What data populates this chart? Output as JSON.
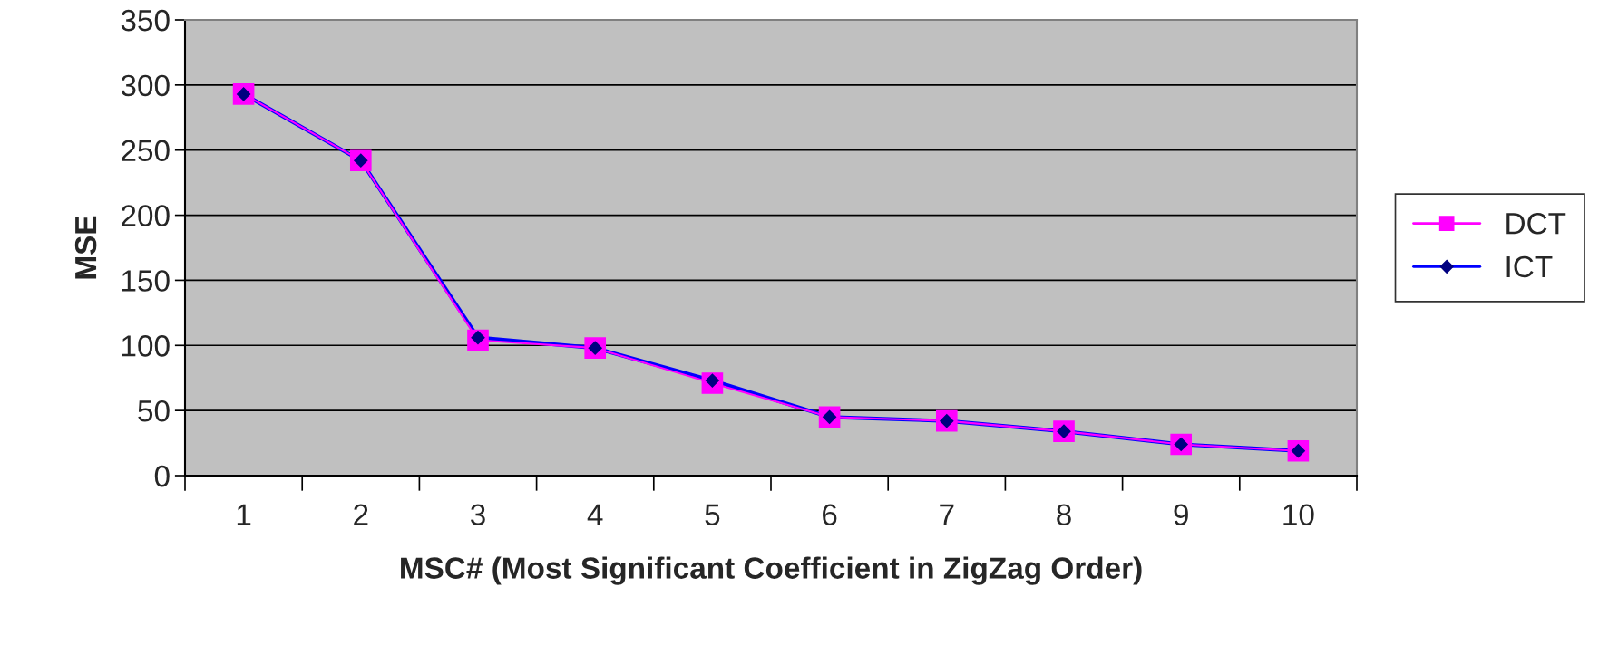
{
  "chart_data": {
    "type": "line",
    "xlabel": "MSC# (Most Significant Coefficient in ZigZag Order)",
    "ylabel": "MSE",
    "categories": [
      "1",
      "2",
      "3",
      "4",
      "5",
      "6",
      "7",
      "8",
      "9",
      "10"
    ],
    "series": [
      {
        "name": "DCT",
        "color": "#ff00ff",
        "marker": "square",
        "values": [
          293,
          242,
          104,
          98,
          71,
          45,
          42,
          34,
          24,
          19
        ]
      },
      {
        "name": "ICT",
        "color": "#0000ff",
        "marker": "diamond",
        "values": [
          293,
          242,
          106,
          98,
          73,
          45,
          42,
          34,
          24,
          19
        ]
      }
    ],
    "ylim": [
      0,
      350
    ],
    "yticks": [
      0,
      50,
      100,
      150,
      200,
      250,
      300,
      350
    ],
    "grid": "y",
    "legend": "right",
    "line_style": "solid"
  }
}
